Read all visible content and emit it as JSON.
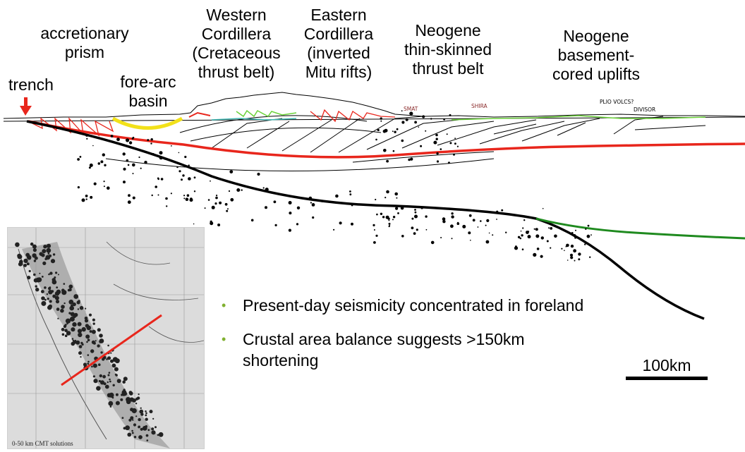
{
  "labels": {
    "trench": "trench",
    "accretionary_prism": "accretionary\nprism",
    "fore_arc_basin": "fore-arc\nbasin",
    "western_cordillera": "Western\nCordillera\n(Cretaceous\nthrust belt)",
    "eastern_cordillera": "Eastern\nCordillera\n(inverted\nMitu rifts)",
    "neogene_thin": "Neogene\nthin-skinned\nthrust belt",
    "neogene_basement": "Neogene\nbasement-\ncored uplifts"
  },
  "section_labels": {
    "smat": "SMAT",
    "shira": "SHIRA",
    "plio_volcs": "PLIO VOLCS?",
    "divisor": "DIVISOR"
  },
  "bullets": [
    "Present-day seismicity concentrated in foreland",
    "Crustal area balance suggests >150km shortening"
  ],
  "bullet_glyph": "•",
  "scale_bar": {
    "label": "100km"
  },
  "inset": {
    "caption": "0-50 km CMT solutions"
  },
  "colors": {
    "trench_arrow": "#e8261c",
    "accretionary_prism": "#e8261c",
    "fore_arc_basin": "#f2e11a",
    "moho_red": "#e8261c",
    "slab": "#000000",
    "subandean": "#1f8a1f",
    "bullet": "#80b030",
    "section_line": "#6bd23a",
    "teal": "#3cb5b0"
  },
  "icons": {
    "trench_marker": "down-arrow-icon"
  }
}
